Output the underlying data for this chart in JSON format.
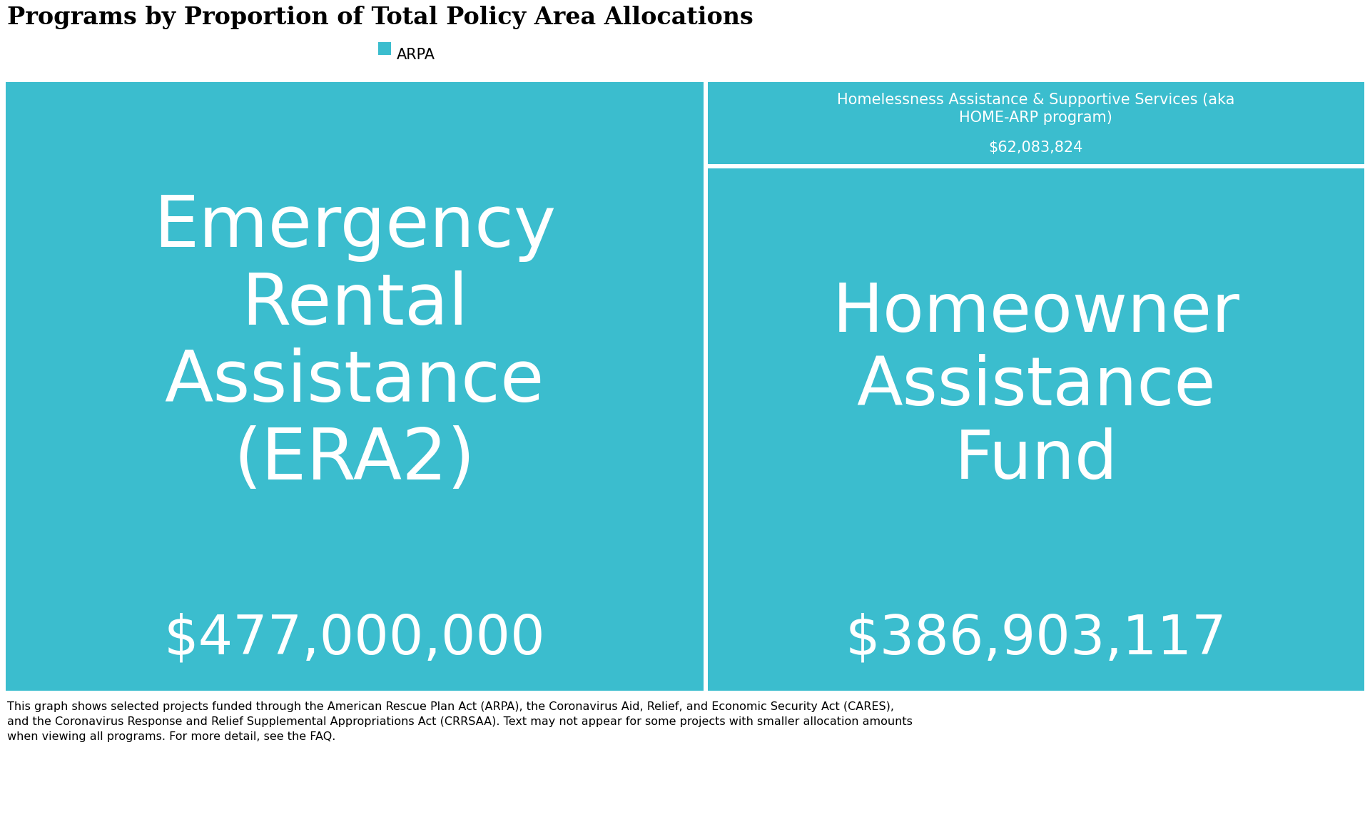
{
  "title": "Programs by Proportion of Total Policy Area Allocations",
  "legend_label": "ARPA",
  "teal_color": "#3bbdce",
  "white_color": "#ffffff",
  "bg_color": "#ffffff",
  "programs": [
    {
      "name": "Emergency\nRental\nAssistance\n(ERA2)",
      "amount": 477000000,
      "amount_str": "$477,000,000",
      "name_fontsize": 72,
      "amount_fontsize": 55
    },
    {
      "name": "Homelessness Assistance & Supportive Services (aka\nHOME-ARP program)",
      "amount": 62083824,
      "amount_str": "$62,083,824",
      "name_fontsize": 15,
      "amount_fontsize": 15
    },
    {
      "name": "Homeowner\nAssistance\nFund",
      "amount": 386903117,
      "amount_str": "$386,903,117",
      "name_fontsize": 68,
      "amount_fontsize": 55
    }
  ],
  "footer_text": "This graph shows selected projects funded through the American Rescue Plan Act (ARPA), the Coronavirus Aid, Relief, and Economic Security Act (CARES),\nand the Coronavirus Response and Relief Supplemental Appropriations Act (CRRSAA). Text may not appear for some projects with smaller allocation amounts\nwhen viewing all programs. For more detail, see the FAQ.",
  "footer_fontsize": 11.5,
  "title_fontsize": 24,
  "legend_fontsize": 15
}
